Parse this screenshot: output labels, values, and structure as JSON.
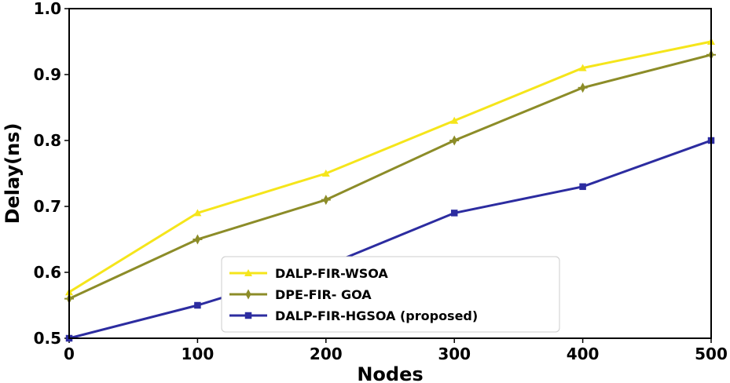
{
  "chart_data": {
    "type": "line",
    "title": "",
    "xlabel": "Nodes",
    "ylabel": "Delay(ns)",
    "x": [
      0,
      100,
      200,
      300,
      400,
      500
    ],
    "xlim": [
      0,
      500
    ],
    "ylim": [
      0.5,
      1.0
    ],
    "xticks": [
      "0",
      "100",
      "200",
      "300",
      "400",
      "500"
    ],
    "yticks": [
      "0.5",
      "0.6",
      "0.7",
      "0.8",
      "0.9",
      "1.0"
    ],
    "grid": false,
    "legend_position": "lower-center",
    "series": [
      {
        "name": "DALP-FIR-WSOA",
        "values": [
          0.57,
          0.69,
          0.75,
          0.83,
          0.91,
          0.95
        ],
        "color": "#f5e51b",
        "marker": "triangle"
      },
      {
        "name": "DPE-FIR- GOA",
        "values": [
          0.56,
          0.65,
          0.71,
          0.8,
          0.88,
          0.93
        ],
        "color": "#8c8c28",
        "marker": "diamond"
      },
      {
        "name": "DALP-FIR-HGSOA (proposed)",
        "values": [
          0.5,
          0.55,
          0.61,
          0.69,
          0.73,
          0.8
        ],
        "color": "#2c2ca0",
        "marker": "square"
      }
    ]
  }
}
